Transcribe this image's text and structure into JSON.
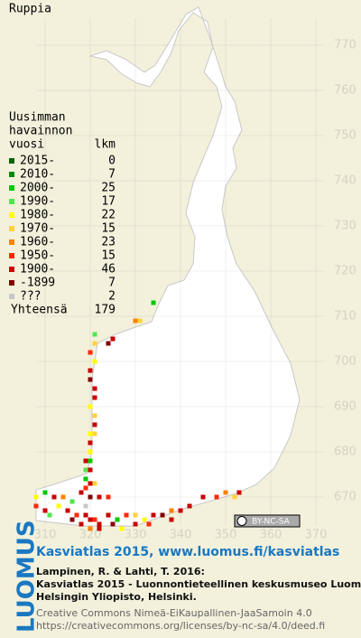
{
  "title": "Ruppia",
  "map": {
    "xticks": [
      310,
      320,
      330,
      340,
      350,
      360,
      370
    ],
    "yticks": [
      770,
      760,
      750,
      740,
      730,
      720,
      710,
      700,
      690,
      680,
      670
    ],
    "squares": [
      [
        334,
        713,
        2
      ],
      [
        330,
        709,
        6
      ],
      [
        331,
        709,
        5
      ],
      [
        325,
        705,
        8
      ],
      [
        324,
        704,
        9
      ],
      [
        321,
        706,
        3
      ],
      [
        321,
        704,
        5
      ],
      [
        320,
        702,
        7
      ],
      [
        321,
        700,
        4
      ],
      [
        320,
        698,
        8
      ],
      [
        320,
        696,
        9
      ],
      [
        321,
        694,
        8
      ],
      [
        321,
        692,
        8
      ],
      [
        320,
        690,
        4
      ],
      [
        321,
        688,
        5
      ],
      [
        321,
        686,
        8
      ],
      [
        320,
        684,
        4
      ],
      [
        321,
        684,
        5
      ],
      [
        320,
        682,
        8
      ],
      [
        320,
        680,
        4
      ],
      [
        319,
        678,
        8
      ],
      [
        320,
        678,
        2
      ],
      [
        319,
        676,
        3
      ],
      [
        320,
        676,
        8
      ],
      [
        319,
        674,
        2
      ],
      [
        320,
        673,
        8
      ],
      [
        321,
        673,
        5
      ],
      [
        319,
        672,
        7
      ],
      [
        318,
        671,
        8
      ],
      [
        320,
        670,
        9
      ],
      [
        322,
        670,
        8
      ],
      [
        324,
        670,
        7
      ],
      [
        308,
        670,
        4
      ],
      [
        310,
        671,
        2
      ],
      [
        312,
        670,
        8
      ],
      [
        314,
        670,
        6
      ],
      [
        316,
        669,
        3
      ],
      [
        308,
        668,
        7
      ],
      [
        310,
        667,
        8
      ],
      [
        311,
        666,
        3
      ],
      [
        313,
        668,
        4
      ],
      [
        315,
        667,
        8
      ],
      [
        317,
        666,
        7
      ],
      [
        319,
        666,
        8
      ],
      [
        320,
        665,
        8
      ],
      [
        321,
        665,
        7
      ],
      [
        322,
        664,
        8
      ],
      [
        324,
        666,
        8
      ],
      [
        326,
        665,
        2
      ],
      [
        328,
        666,
        7
      ],
      [
        330,
        666,
        5
      ],
      [
        332,
        665,
        4
      ],
      [
        334,
        666,
        8
      ],
      [
        336,
        666,
        9
      ],
      [
        338,
        667,
        6
      ],
      [
        340,
        667,
        8
      ],
      [
        342,
        668,
        8
      ],
      [
        345,
        670,
        8
      ],
      [
        348,
        670,
        7
      ],
      [
        350,
        671,
        6
      ],
      [
        352,
        670,
        5
      ],
      [
        353,
        671,
        8
      ],
      [
        318,
        664,
        8
      ],
      [
        320,
        663,
        6
      ],
      [
        322,
        663,
        8
      ],
      [
        325,
        664,
        9
      ],
      [
        327,
        663,
        4
      ],
      [
        316,
        665,
        9
      ],
      [
        330,
        664,
        8
      ],
      [
        333,
        664,
        7
      ],
      [
        338,
        665,
        8
      ],
      [
        319,
        668,
        10
      ]
    ],
    "license_badge": "BY-NC-SA"
  },
  "legend": {
    "header": [
      "Uusimman",
      "havainnon",
      "vuosi"
    ],
    "count_header": "lkm",
    "rows": [
      {
        "label": "2015-",
        "count": 0,
        "color": "#006400"
      },
      {
        "label": "2010-",
        "count": 7,
        "color": "#008c00"
      },
      {
        "label": "2000-",
        "count": 25,
        "color": "#00c800"
      },
      {
        "label": "1990-",
        "count": 17,
        "color": "#50e650"
      },
      {
        "label": "1980-",
        "count": 22,
        "color": "#ffff00"
      },
      {
        "label": "1970-",
        "count": 15,
        "color": "#ffd23c"
      },
      {
        "label": "1960-",
        "count": 23,
        "color": "#ff8200"
      },
      {
        "label": "1950-",
        "count": 15,
        "color": "#ff2800"
      },
      {
        "label": "1900-",
        "count": 46,
        "color": "#c80000"
      },
      {
        "label": "-1899",
        "count": 7,
        "color": "#820000"
      },
      {
        "label": "???",
        "count": 2,
        "color": "#c8c8c8"
      }
    ],
    "total_label": "Yhteensä",
    "total": 179
  },
  "footer": {
    "logo": "LUOMUS",
    "headline": "Kasviatlas 2015, www.luomus.fi/kasviatlas",
    "citation": [
      "Lampinen, R. & Lahti, T. 2016:",
      "Kasviatlas 2015 - Luonnontieteellinen keskusmuseo Luomus,",
      "Helsingin Yliopisto, Helsinki."
    ],
    "license": [
      "Creative Commons Nimeä-EiKaupallinen-JaaSamoin 4.0",
      "https://creativecommons.org/licenses/by-nc-sa/4.0/deed.fi"
    ]
  }
}
